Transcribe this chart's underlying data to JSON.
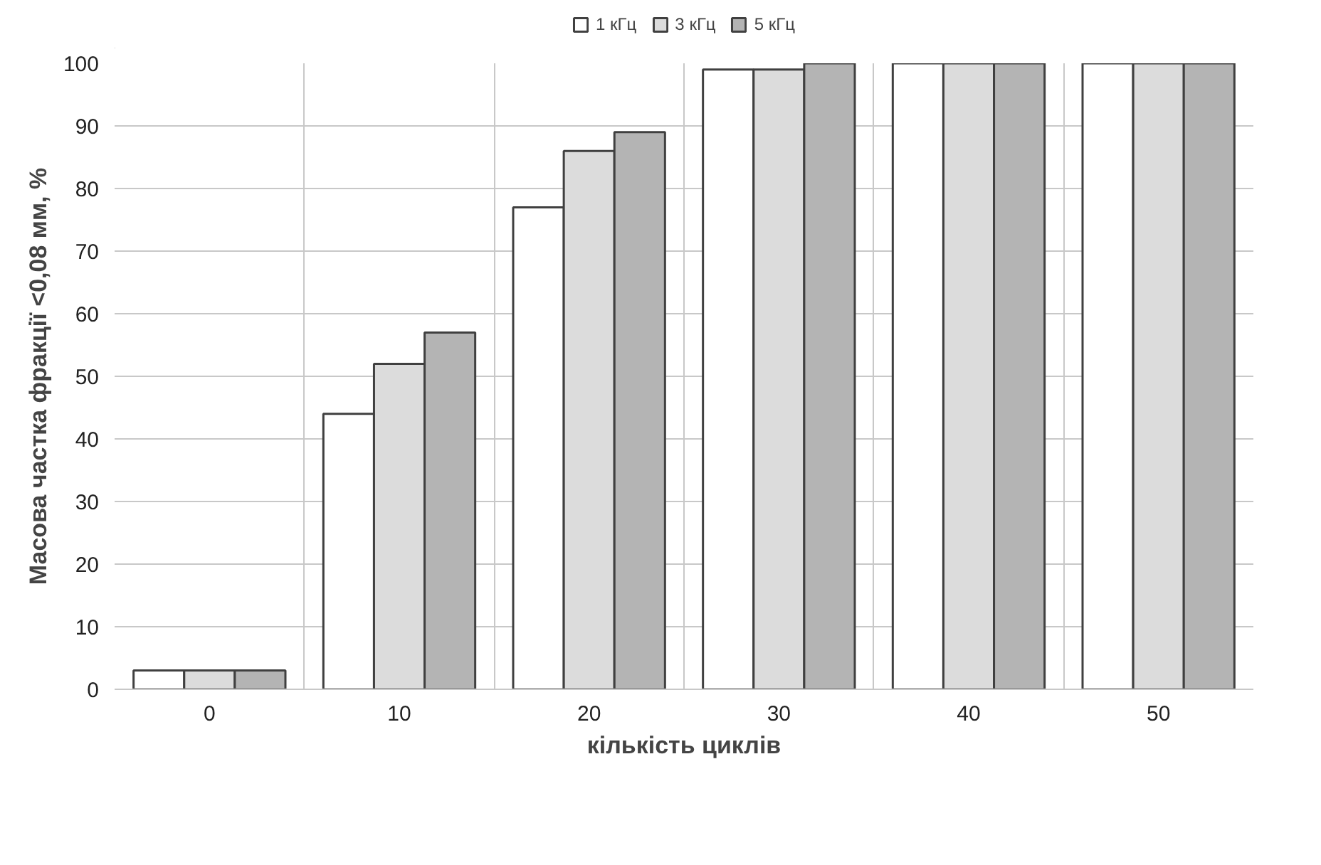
{
  "chart_data": {
    "type": "bar",
    "xlabel": "кількість циклів",
    "ylabel": "Масова частка фракції <0,08 мм, %",
    "categories": [
      "0",
      "10",
      "20",
      "30",
      "40",
      "50"
    ],
    "series": [
      {
        "name": "1 кГц",
        "color": "#ffffff",
        "values": [
          3,
          44,
          77,
          99,
          100,
          100
        ]
      },
      {
        "name": "3 кГц",
        "color": "#dcdcdc",
        "values": [
          3,
          52,
          86,
          99,
          100,
          100
        ]
      },
      {
        "name": "5 кГц",
        "color": "#b4b4b4",
        "values": [
          3,
          57,
          89,
          100,
          100,
          100
        ]
      }
    ],
    "ylim": [
      0,
      100
    ],
    "yticks": [
      0,
      10,
      20,
      30,
      40,
      50,
      60,
      70,
      80,
      90,
      100
    ],
    "grid": true,
    "legend": "top"
  }
}
